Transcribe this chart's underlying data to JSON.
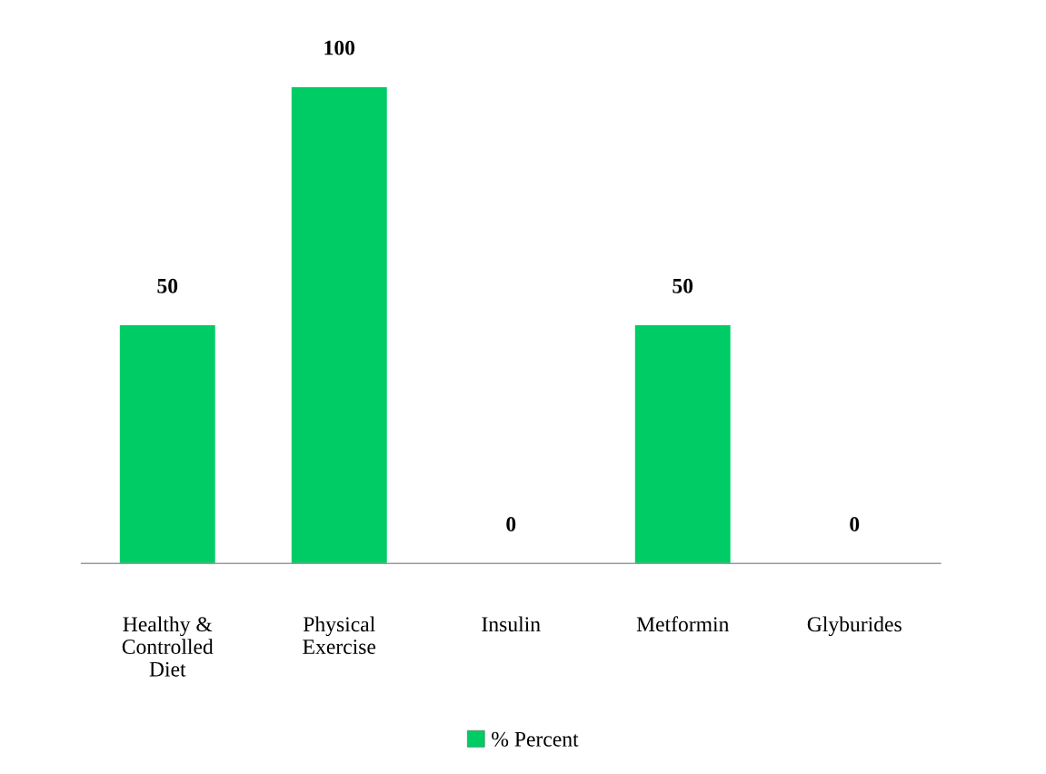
{
  "chart_data": {
    "type": "bar",
    "categories": [
      "Healthy &\nControlled\nDiet",
      "Physical\nExercise",
      "Insulin",
      "Metformin",
      "Glyburides"
    ],
    "series": [
      {
        "name": "% Percent",
        "color": "#00cc66",
        "values": [
          50,
          100,
          0,
          50,
          0
        ]
      }
    ],
    "data_labels": true,
    "legend": "bottom",
    "tick_labels": "x"
  }
}
